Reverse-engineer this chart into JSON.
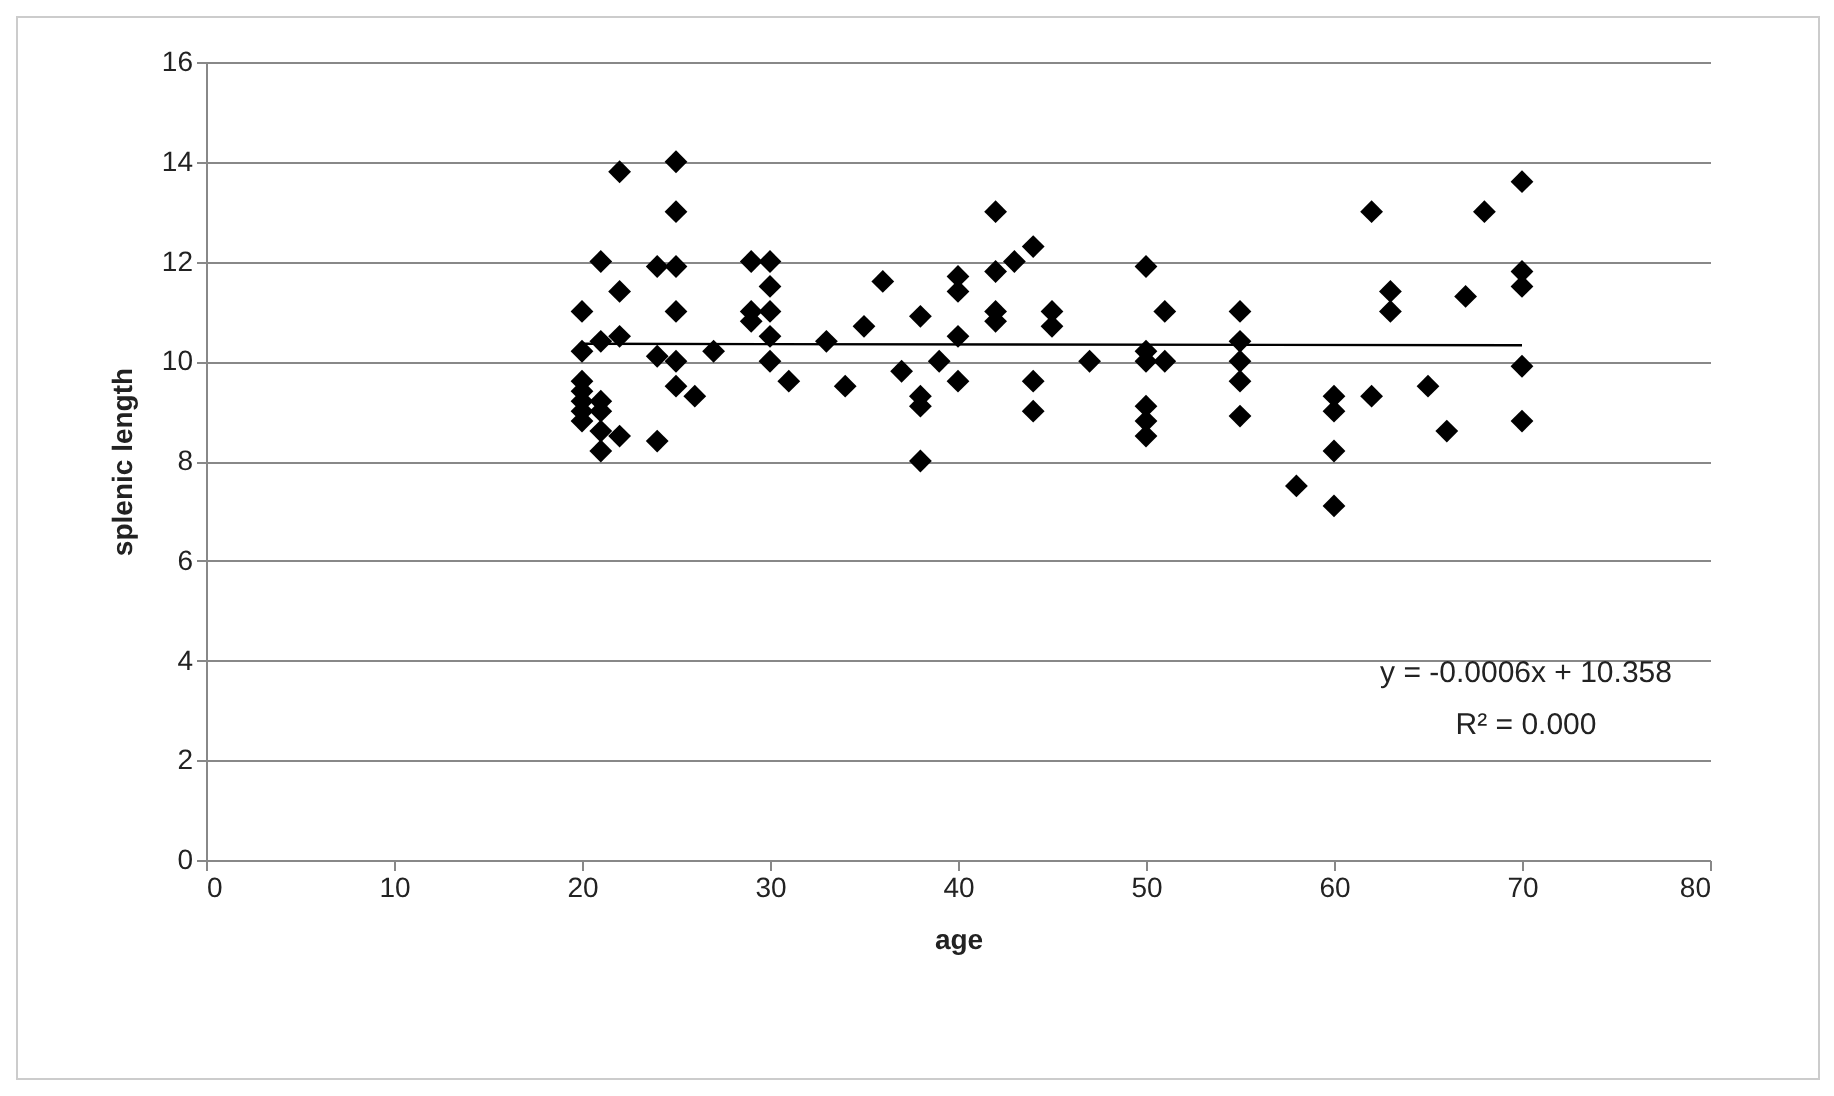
{
  "chart_data": {
    "type": "scatter",
    "xlabel": "age",
    "ylabel": "splenic length",
    "xlim": [
      0,
      80
    ],
    "xticks": [
      0,
      10,
      20,
      30,
      40,
      50,
      60,
      70,
      80
    ],
    "ylim": [
      0,
      16
    ],
    "yticks": [
      0,
      2,
      4,
      6,
      8,
      10,
      12,
      14,
      16
    ],
    "grid": "y",
    "annotations": [
      "y = -0.0006x + 10.358",
      "R² = 0.000"
    ],
    "series": [
      {
        "color": "#000000",
        "marker": "diamond",
        "x": [
          20,
          20,
          20,
          20,
          20,
          20,
          20,
          21,
          21,
          21,
          21,
          21,
          21,
          22,
          22,
          22,
          22,
          24,
          24,
          24,
          25,
          25,
          25,
          25,
          25,
          25,
          26,
          27,
          29,
          29,
          29,
          30,
          30,
          30,
          30,
          30,
          31,
          33,
          34,
          35,
          36,
          37,
          38,
          38,
          38,
          38,
          39,
          40,
          40,
          40,
          40,
          42,
          42,
          42,
          42,
          43,
          44,
          44,
          44,
          45,
          45,
          47,
          50,
          50,
          50,
          50,
          50,
          50,
          51,
          51,
          55,
          55,
          55,
          55,
          55,
          58,
          60,
          60,
          60,
          60,
          62,
          62,
          63,
          63,
          65,
          66,
          67,
          68,
          70,
          70,
          70,
          70,
          70
        ],
        "values": [
          9.0,
          9.2,
          9.4,
          8.8,
          10.2,
          11.0,
          9.6,
          12.0,
          10.4,
          9.2,
          8.6,
          8.2,
          9.0,
          13.8,
          11.4,
          10.5,
          8.5,
          11.9,
          10.1,
          8.4,
          14.0,
          13.0,
          11.9,
          11.0,
          10.0,
          9.5,
          9.3,
          10.2,
          12.0,
          11.0,
          10.8,
          12.0,
          11.5,
          11.0,
          10.5,
          10.0,
          9.6,
          10.4,
          9.5,
          10.7,
          11.6,
          9.8,
          10.9,
          9.3,
          9.1,
          8.0,
          10.0,
          11.7,
          11.4,
          10.5,
          9.6,
          13.0,
          11.8,
          11.0,
          10.8,
          12.0,
          12.3,
          9.6,
          9.0,
          11.0,
          10.7,
          10.0,
          11.9,
          10.2,
          10.0,
          9.1,
          8.8,
          8.5,
          11.0,
          10.0,
          11.0,
          10.4,
          10.0,
          9.6,
          8.9,
          7.5,
          9.3,
          9.0,
          8.2,
          7.1,
          13.0,
          9.3,
          11.4,
          11.0,
          9.5,
          8.6,
          11.3,
          13.0,
          13.6,
          11.8,
          11.5,
          9.9,
          8.8
        ]
      },
      {
        "type": "line",
        "color": "#000000",
        "marker": "none",
        "x": [
          20,
          70
        ],
        "values": [
          10.35,
          10.32
        ]
      }
    ]
  }
}
